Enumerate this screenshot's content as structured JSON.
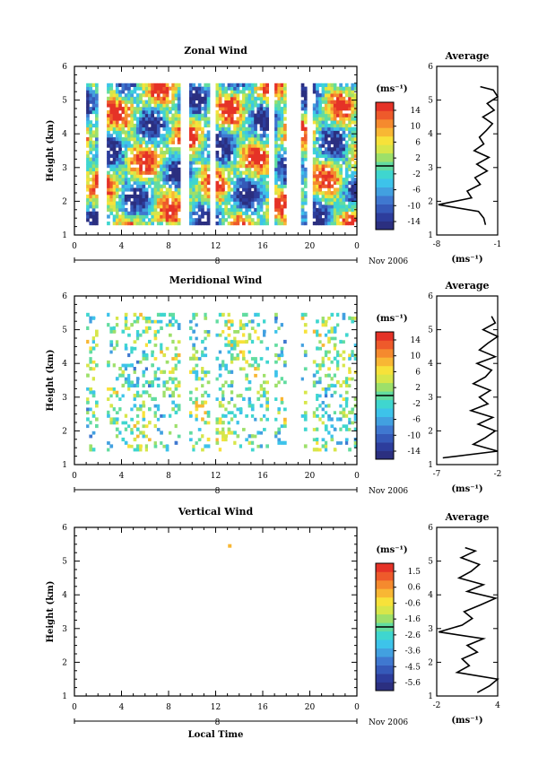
{
  "figure": {
    "panels": [
      {
        "title": "Zonal Wind",
        "ylabel": "Height (km)",
        "yticks": [
          "1",
          "2",
          "3",
          "4",
          "5",
          "6"
        ],
        "xticks": [
          "0",
          "4",
          "8",
          "12",
          "16",
          "20",
          "0"
        ],
        "date_label": "8",
        "month_label": "Nov 2006",
        "xlabel": "",
        "colorbar_unit": "(ms⁻¹)",
        "colorbar_ticks": [
          "14",
          "10",
          "6",
          "2",
          "-2",
          "-6",
          "-10",
          "-14"
        ],
        "avg_title": "Average",
        "avg_yticks": [
          "1",
          "2",
          "3",
          "4",
          "5",
          "6"
        ],
        "avg_xticks": [
          "-8",
          "-1"
        ],
        "avg_unit": "(ms⁻¹)"
      },
      {
        "title": "Meridional Wind",
        "ylabel": "Height (km)",
        "yticks": [
          "1",
          "2",
          "3",
          "4",
          "5",
          "6"
        ],
        "xticks": [
          "0",
          "4",
          "8",
          "12",
          "16",
          "20",
          "0"
        ],
        "date_label": "8",
        "month_label": "Nov 2006",
        "xlabel": "",
        "colorbar_unit": "(ms⁻¹)",
        "colorbar_ticks": [
          "14",
          "10",
          "6",
          "2",
          "-2",
          "-6",
          "-10",
          "-14"
        ],
        "avg_title": "Average",
        "avg_yticks": [
          "1",
          "2",
          "3",
          "4",
          "5",
          "6"
        ],
        "avg_xticks": [
          "-7",
          "-2"
        ],
        "avg_unit": "(ms⁻¹)"
      },
      {
        "title": "Vertical Wind",
        "ylabel": "Height (km)",
        "yticks": [
          "1",
          "2",
          "3",
          "4",
          "5",
          "6"
        ],
        "xticks": [
          "0",
          "4",
          "8",
          "12",
          "16",
          "20",
          "0"
        ],
        "date_label": "8",
        "month_label": "Nov 2006",
        "xlabel": "Local Time",
        "colorbar_unit": "(ms⁻¹)",
        "colorbar_ticks": [
          "1.5",
          "0.6",
          "-0.6",
          "-1.6",
          "-2.6",
          "-3.6",
          "-4.5",
          "-5.6"
        ],
        "avg_title": "Average",
        "avg_yticks": [
          "1",
          "2",
          "3",
          "4",
          "5",
          "6"
        ],
        "avg_xticks": [
          "-2",
          "4"
        ],
        "avg_unit": "(ms⁻¹)"
      }
    ],
    "colorscale": [
      "#2b2f80",
      "#2d3d9c",
      "#3559b8",
      "#3f78d0",
      "#42a0e0",
      "#3dc3ea",
      "#3fd6cf",
      "#62dca0",
      "#9de06a",
      "#d7e64a",
      "#f7e23a",
      "#f8b734",
      "#f58a2e",
      "#ee5a2b",
      "#e53227"
    ]
  },
  "chart_data": [
    {
      "type": "heatmap",
      "title": "Zonal Wind",
      "xlabel": "",
      "ylabel": "Height (km)",
      "xlim": [
        0,
        24
      ],
      "ylim": [
        1,
        6
      ],
      "zlim": [
        -16,
        16
      ],
      "data_height_range": [
        1.3,
        5.4
      ],
      "colorbar_ticks": [
        14,
        10,
        6,
        2,
        -2,
        -6,
        -10,
        -14
      ],
      "average_profile": {
        "title": "Average",
        "xlim": [
          -8,
          -1
        ],
        "height": [
          1.3,
          1.5,
          1.7,
          1.9,
          2.1,
          2.3,
          2.5,
          2.7,
          2.9,
          3.1,
          3.3,
          3.5,
          3.7,
          3.9,
          4.1,
          4.3,
          4.5,
          4.7,
          4.9,
          5.1,
          5.3,
          5.4
        ],
        "value": [
          -2.4,
          -2.6,
          -3.2,
          -7.8,
          -4.0,
          -4.5,
          -3.0,
          -3.6,
          -2.2,
          -3.4,
          -2.0,
          -3.7,
          -2.6,
          -3.1,
          -2.3,
          -1.6,
          -2.7,
          -1.4,
          -2.2,
          -1.0,
          -1.5,
          -3.0
        ]
      }
    },
    {
      "type": "heatmap",
      "title": "Meridional Wind",
      "xlabel": "",
      "ylabel": "Height (km)",
      "xlim": [
        0,
        24
      ],
      "ylim": [
        1,
        6
      ],
      "zlim": [
        -16,
        16
      ],
      "data_height_range": [
        1.4,
        5.4
      ],
      "colorbar_ticks": [
        14,
        10,
        6,
        2,
        -2,
        -6,
        -10,
        -14
      ],
      "average_profile": {
        "title": "Average",
        "xlim": [
          -7,
          -2
        ],
        "height": [
          1.2,
          1.4,
          1.6,
          1.8,
          2.0,
          2.2,
          2.4,
          2.6,
          2.8,
          3.0,
          3.2,
          3.4,
          3.6,
          3.8,
          4.0,
          4.2,
          4.4,
          4.6,
          4.8,
          5.0,
          5.2,
          5.4
        ],
        "value": [
          -6.5,
          -2.0,
          -4.0,
          -3.0,
          -2.2,
          -3.6,
          -2.4,
          -4.2,
          -2.8,
          -3.5,
          -2.6,
          -4.0,
          -3.0,
          -2.5,
          -3.7,
          -2.2,
          -3.5,
          -2.8,
          -2.0,
          -3.2,
          -2.2,
          -2.5
        ]
      }
    },
    {
      "type": "heatmap",
      "title": "Vertical Wind",
      "xlabel": "Local Time",
      "ylabel": "Height (km)",
      "xlim": [
        0,
        24
      ],
      "ylim": [
        1,
        6
      ],
      "zlim": [
        -6,
        2
      ],
      "colorbar_ticks": [
        1.5,
        0.6,
        -0.6,
        -1.6,
        -2.6,
        -3.6,
        -4.5,
        -5.6
      ],
      "points": [
        {
          "x": 13.2,
          "y": 5.45,
          "value": 0.2
        }
      ],
      "average_profile": {
        "title": "Average",
        "xlim": [
          -2,
          4
        ],
        "height": [
          1.1,
          1.3,
          1.5,
          1.7,
          1.9,
          2.1,
          2.3,
          2.5,
          2.7,
          2.9,
          3.1,
          3.3,
          3.5,
          3.7,
          3.9,
          4.1,
          4.3,
          4.5,
          4.7,
          4.9,
          5.1,
          5.3,
          5.4
        ],
        "value": [
          2.0,
          3.2,
          4.0,
          0.0,
          1.2,
          0.5,
          2.0,
          1.0,
          2.6,
          -1.8,
          0.5,
          1.5,
          0.7,
          2.3,
          3.8,
          1.0,
          2.6,
          0.2,
          1.4,
          2.2,
          0.4,
          1.8,
          0.8
        ]
      }
    }
  ]
}
